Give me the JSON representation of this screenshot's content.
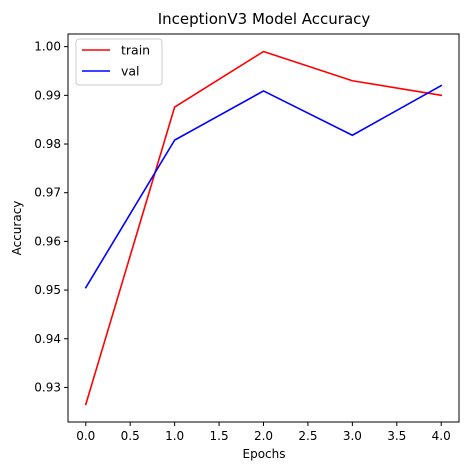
{
  "chart_data": {
    "type": "line",
    "title": "InceptionV3 Model Accuracy",
    "xlabel": "Epochs",
    "ylabel": "Accuracy",
    "x": [
      0,
      1,
      2,
      3,
      4
    ],
    "xlim": [
      -0.2,
      4.2
    ],
    "ylim": [
      0.9229,
      1.0026
    ],
    "xticks": [
      0.0,
      0.5,
      1.0,
      1.5,
      2.0,
      2.5,
      3.0,
      3.5,
      4.0
    ],
    "xtick_labels": [
      "0.0",
      "0.5",
      "1.0",
      "1.5",
      "2.0",
      "2.5",
      "3.0",
      "3.5",
      "4.0"
    ],
    "yticks": [
      0.93,
      0.94,
      0.95,
      0.96,
      0.97,
      0.98,
      0.99,
      1.0
    ],
    "ytick_labels": [
      "0.93",
      "0.94",
      "0.95",
      "0.96",
      "0.97",
      "0.98",
      "0.99",
      "1.00"
    ],
    "grid": false,
    "legend_position": "top-left",
    "series": [
      {
        "name": "train",
        "color": "#ff0000",
        "values": [
          0.9265,
          0.9876,
          0.999,
          0.993,
          0.99
        ]
      },
      {
        "name": "val",
        "color": "#0000ff",
        "values": [
          0.9505,
          0.9808,
          0.9909,
          0.9818,
          0.992
        ]
      }
    ]
  }
}
